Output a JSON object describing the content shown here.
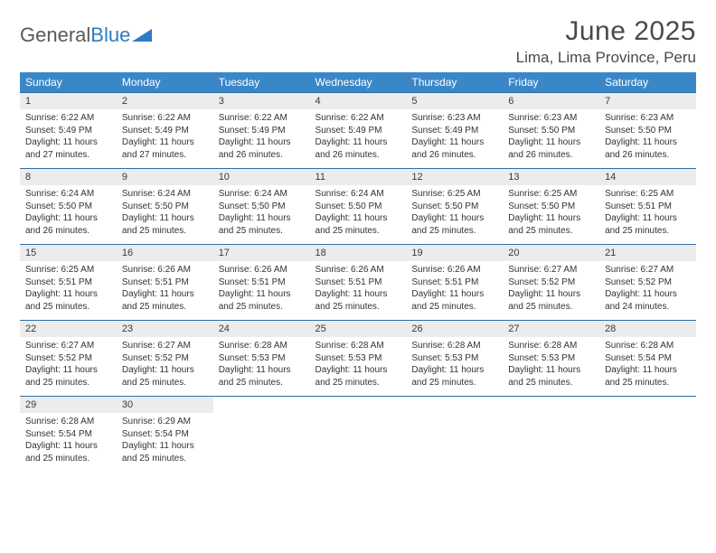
{
  "brand": {
    "part1": "General",
    "part2": "Blue"
  },
  "title": "June 2025",
  "location": "Lima, Lima Province, Peru",
  "colors": {
    "header_bg": "#3a87c8",
    "header_text": "#ffffff",
    "daynum_bg": "#ececec",
    "rule": "#2f6fa5",
    "text": "#333333",
    "brand_gray": "#595959",
    "brand_blue": "#2d7bc3",
    "page_bg": "#ffffff"
  },
  "typography": {
    "title_fontsize": 30,
    "location_fontsize": 17,
    "dow_fontsize": 12,
    "daynum_fontsize": 11,
    "body_fontsize": 10
  },
  "day_headers": [
    "Sunday",
    "Monday",
    "Tuesday",
    "Wednesday",
    "Thursday",
    "Friday",
    "Saturday"
  ],
  "weeks": [
    [
      {
        "n": "1",
        "sunrise": "Sunrise: 6:22 AM",
        "sunset": "Sunset: 5:49 PM",
        "d1": "Daylight: 11 hours",
        "d2": "and 27 minutes."
      },
      {
        "n": "2",
        "sunrise": "Sunrise: 6:22 AM",
        "sunset": "Sunset: 5:49 PM",
        "d1": "Daylight: 11 hours",
        "d2": "and 27 minutes."
      },
      {
        "n": "3",
        "sunrise": "Sunrise: 6:22 AM",
        "sunset": "Sunset: 5:49 PM",
        "d1": "Daylight: 11 hours",
        "d2": "and 26 minutes."
      },
      {
        "n": "4",
        "sunrise": "Sunrise: 6:22 AM",
        "sunset": "Sunset: 5:49 PM",
        "d1": "Daylight: 11 hours",
        "d2": "and 26 minutes."
      },
      {
        "n": "5",
        "sunrise": "Sunrise: 6:23 AM",
        "sunset": "Sunset: 5:49 PM",
        "d1": "Daylight: 11 hours",
        "d2": "and 26 minutes."
      },
      {
        "n": "6",
        "sunrise": "Sunrise: 6:23 AM",
        "sunset": "Sunset: 5:50 PM",
        "d1": "Daylight: 11 hours",
        "d2": "and 26 minutes."
      },
      {
        "n": "7",
        "sunrise": "Sunrise: 6:23 AM",
        "sunset": "Sunset: 5:50 PM",
        "d1": "Daylight: 11 hours",
        "d2": "and 26 minutes."
      }
    ],
    [
      {
        "n": "8",
        "sunrise": "Sunrise: 6:24 AM",
        "sunset": "Sunset: 5:50 PM",
        "d1": "Daylight: 11 hours",
        "d2": "and 26 minutes."
      },
      {
        "n": "9",
        "sunrise": "Sunrise: 6:24 AM",
        "sunset": "Sunset: 5:50 PM",
        "d1": "Daylight: 11 hours",
        "d2": "and 25 minutes."
      },
      {
        "n": "10",
        "sunrise": "Sunrise: 6:24 AM",
        "sunset": "Sunset: 5:50 PM",
        "d1": "Daylight: 11 hours",
        "d2": "and 25 minutes."
      },
      {
        "n": "11",
        "sunrise": "Sunrise: 6:24 AM",
        "sunset": "Sunset: 5:50 PM",
        "d1": "Daylight: 11 hours",
        "d2": "and 25 minutes."
      },
      {
        "n": "12",
        "sunrise": "Sunrise: 6:25 AM",
        "sunset": "Sunset: 5:50 PM",
        "d1": "Daylight: 11 hours",
        "d2": "and 25 minutes."
      },
      {
        "n": "13",
        "sunrise": "Sunrise: 6:25 AM",
        "sunset": "Sunset: 5:50 PM",
        "d1": "Daylight: 11 hours",
        "d2": "and 25 minutes."
      },
      {
        "n": "14",
        "sunrise": "Sunrise: 6:25 AM",
        "sunset": "Sunset: 5:51 PM",
        "d1": "Daylight: 11 hours",
        "d2": "and 25 minutes."
      }
    ],
    [
      {
        "n": "15",
        "sunrise": "Sunrise: 6:25 AM",
        "sunset": "Sunset: 5:51 PM",
        "d1": "Daylight: 11 hours",
        "d2": "and 25 minutes."
      },
      {
        "n": "16",
        "sunrise": "Sunrise: 6:26 AM",
        "sunset": "Sunset: 5:51 PM",
        "d1": "Daylight: 11 hours",
        "d2": "and 25 minutes."
      },
      {
        "n": "17",
        "sunrise": "Sunrise: 6:26 AM",
        "sunset": "Sunset: 5:51 PM",
        "d1": "Daylight: 11 hours",
        "d2": "and 25 minutes."
      },
      {
        "n": "18",
        "sunrise": "Sunrise: 6:26 AM",
        "sunset": "Sunset: 5:51 PM",
        "d1": "Daylight: 11 hours",
        "d2": "and 25 minutes."
      },
      {
        "n": "19",
        "sunrise": "Sunrise: 6:26 AM",
        "sunset": "Sunset: 5:51 PM",
        "d1": "Daylight: 11 hours",
        "d2": "and 25 minutes."
      },
      {
        "n": "20",
        "sunrise": "Sunrise: 6:27 AM",
        "sunset": "Sunset: 5:52 PM",
        "d1": "Daylight: 11 hours",
        "d2": "and 25 minutes."
      },
      {
        "n": "21",
        "sunrise": "Sunrise: 6:27 AM",
        "sunset": "Sunset: 5:52 PM",
        "d1": "Daylight: 11 hours",
        "d2": "and 24 minutes."
      }
    ],
    [
      {
        "n": "22",
        "sunrise": "Sunrise: 6:27 AM",
        "sunset": "Sunset: 5:52 PM",
        "d1": "Daylight: 11 hours",
        "d2": "and 25 minutes."
      },
      {
        "n": "23",
        "sunrise": "Sunrise: 6:27 AM",
        "sunset": "Sunset: 5:52 PM",
        "d1": "Daylight: 11 hours",
        "d2": "and 25 minutes."
      },
      {
        "n": "24",
        "sunrise": "Sunrise: 6:28 AM",
        "sunset": "Sunset: 5:53 PM",
        "d1": "Daylight: 11 hours",
        "d2": "and 25 minutes."
      },
      {
        "n": "25",
        "sunrise": "Sunrise: 6:28 AM",
        "sunset": "Sunset: 5:53 PM",
        "d1": "Daylight: 11 hours",
        "d2": "and 25 minutes."
      },
      {
        "n": "26",
        "sunrise": "Sunrise: 6:28 AM",
        "sunset": "Sunset: 5:53 PM",
        "d1": "Daylight: 11 hours",
        "d2": "and 25 minutes."
      },
      {
        "n": "27",
        "sunrise": "Sunrise: 6:28 AM",
        "sunset": "Sunset: 5:53 PM",
        "d1": "Daylight: 11 hours",
        "d2": "and 25 minutes."
      },
      {
        "n": "28",
        "sunrise": "Sunrise: 6:28 AM",
        "sunset": "Sunset: 5:54 PM",
        "d1": "Daylight: 11 hours",
        "d2": "and 25 minutes."
      }
    ],
    [
      {
        "n": "29",
        "sunrise": "Sunrise: 6:28 AM",
        "sunset": "Sunset: 5:54 PM",
        "d1": "Daylight: 11 hours",
        "d2": "and 25 minutes."
      },
      {
        "n": "30",
        "sunrise": "Sunrise: 6:29 AM",
        "sunset": "Sunset: 5:54 PM",
        "d1": "Daylight: 11 hours",
        "d2": "and 25 minutes."
      },
      null,
      null,
      null,
      null,
      null
    ]
  ]
}
